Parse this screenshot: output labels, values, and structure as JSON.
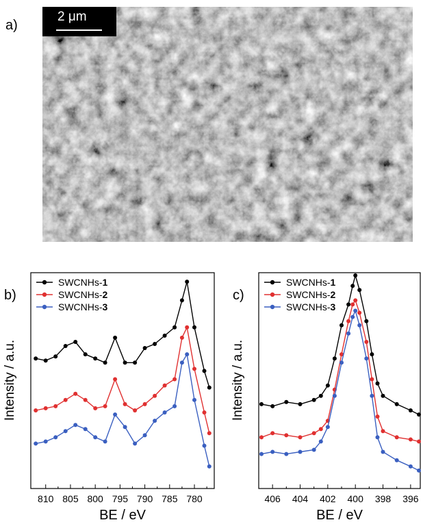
{
  "panels": {
    "a": "a)",
    "b": "b)",
    "c": "c)"
  },
  "micrograph": {
    "scale_label": "2 μm"
  },
  "chart_data": [
    {
      "type": "line",
      "panel": "b",
      "xlabel": "BE / eV",
      "ylabel": "Intensity / a.u.",
      "xlim": [
        813,
        776
      ],
      "x_reversed": true,
      "xticks": [
        810,
        805,
        800,
        795,
        790,
        785,
        780
      ],
      "y_ticks_shown": false,
      "legend_position": "top-left",
      "x": [
        812,
        810,
        808,
        806,
        804,
        802,
        800,
        798,
        796,
        794,
        792,
        790,
        788,
        786,
        784,
        782.5,
        781.5,
        780,
        778,
        777
      ],
      "series": [
        {
          "name": "SWCNHs-1",
          "color": "#000000",
          "values": [
            0.6,
            0.59,
            0.61,
            0.66,
            0.68,
            0.62,
            0.6,
            0.58,
            0.7,
            0.58,
            0.58,
            0.65,
            0.67,
            0.71,
            0.75,
            0.88,
            0.97,
            0.75,
            0.54,
            0.46
          ]
        },
        {
          "name": "SWCNHs-2",
          "color": "#e03030",
          "values": [
            0.35,
            0.36,
            0.37,
            0.4,
            0.43,
            0.4,
            0.36,
            0.37,
            0.5,
            0.38,
            0.35,
            0.38,
            0.42,
            0.47,
            0.5,
            0.7,
            0.75,
            0.55,
            0.34,
            0.24
          ]
        },
        {
          "name": "SWCNHs-3",
          "color": "#3a5fc0",
          "values": [
            0.19,
            0.2,
            0.22,
            0.25,
            0.28,
            0.26,
            0.22,
            0.2,
            0.33,
            0.27,
            0.19,
            0.23,
            0.3,
            0.34,
            0.37,
            0.58,
            0.62,
            0.4,
            0.18,
            0.08
          ]
        }
      ]
    },
    {
      "type": "line",
      "panel": "c",
      "xlabel": "BE / eV",
      "ylabel": "Intensity / a.u.",
      "xlim": [
        407,
        395.3
      ],
      "x_reversed": true,
      "xticks": [
        406,
        404,
        402,
        400,
        398,
        396
      ],
      "y_ticks_shown": false,
      "legend_position": "top-left",
      "x": [
        406.8,
        406,
        405,
        404,
        403,
        402.5,
        402,
        401.5,
        401,
        400.5,
        400.2,
        400,
        399.7,
        399.2,
        398.8,
        398.4,
        398,
        397,
        396,
        395.4
      ],
      "series": [
        {
          "name": "SWCNHs-1",
          "color": "#000000",
          "values": [
            0.38,
            0.37,
            0.39,
            0.38,
            0.4,
            0.42,
            0.47,
            0.6,
            0.76,
            0.86,
            0.95,
            1.0,
            0.93,
            0.78,
            0.62,
            0.48,
            0.42,
            0.38,
            0.35,
            0.33
          ]
        },
        {
          "name": "SWCNHs-2",
          "color": "#e03030",
          "values": [
            0.22,
            0.24,
            0.23,
            0.22,
            0.24,
            0.26,
            0.3,
            0.45,
            0.62,
            0.78,
            0.86,
            0.88,
            0.82,
            0.68,
            0.5,
            0.32,
            0.25,
            0.22,
            0.21,
            0.2
          ]
        },
        {
          "name": "SWCNHs-3",
          "color": "#3a5fc0",
          "values": [
            0.14,
            0.15,
            0.14,
            0.15,
            0.16,
            0.2,
            0.27,
            0.42,
            0.58,
            0.72,
            0.8,
            0.83,
            0.76,
            0.6,
            0.42,
            0.22,
            0.15,
            0.11,
            0.08,
            0.06
          ]
        }
      ]
    }
  ]
}
